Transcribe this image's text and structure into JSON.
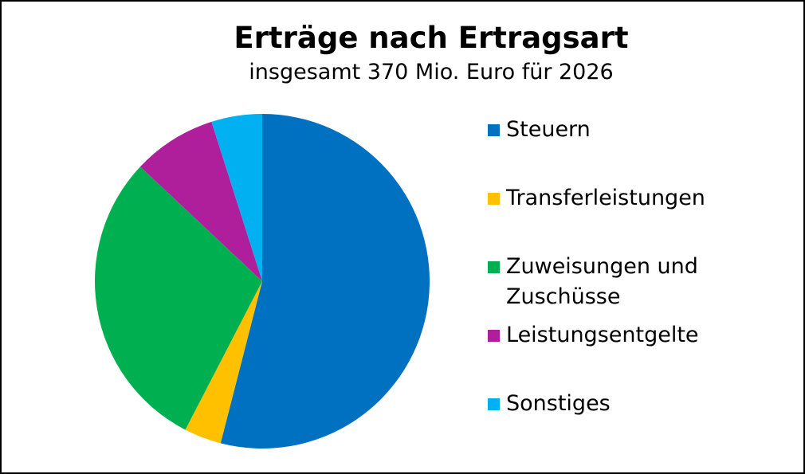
{
  "chart_data": {
    "type": "pie",
    "title": "Erträge nach Ertragsart",
    "subtitle": "insgesamt 370 Mio. Euro für 2026",
    "categories": [
      "Steuern",
      "Transferleistungen",
      "Zuweisungen und Zuschüsse",
      "Leistungsentgelte",
      "Sonstiges"
    ],
    "values": [
      54.0,
      3.6,
      29.4,
      8.1,
      4.9
    ],
    "colors": [
      "#0070c0",
      "#ffc000",
      "#00b050",
      "#b01f9b",
      "#00b0f0"
    ],
    "legend_position": "right",
    "start_angle": "12 o'clock",
    "direction": "clockwise"
  }
}
